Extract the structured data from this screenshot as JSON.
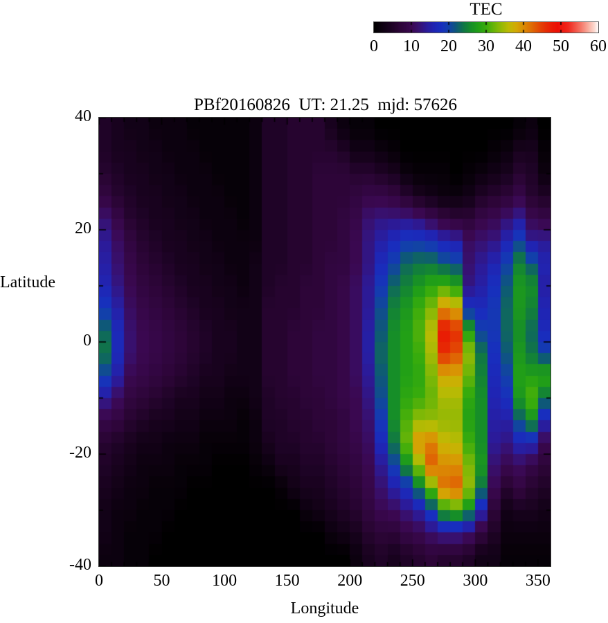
{
  "title": "PBf20160826  UT: 21.25  mjd: 57626",
  "colorbar": {
    "title": "TEC",
    "min": 0,
    "max": 60,
    "ticks": [
      0,
      10,
      20,
      30,
      40,
      50,
      60
    ]
  },
  "axes": {
    "xlabel": "Longitude",
    "ylabel": "Latitude",
    "xlim": [
      0,
      360
    ],
    "ylim": [
      -40,
      40
    ],
    "x_major_ticks": [
      0,
      50,
      100,
      150,
      200,
      250,
      300,
      350
    ],
    "x_minor_step": 10,
    "y_major_ticks": [
      40,
      20,
      0,
      -20,
      -40
    ],
    "y_minor_step": 10
  },
  "chart_data": {
    "type": "heatmap",
    "title": "PBf20160826  UT: 21.25  mjd: 57626",
    "xlabel": "Longitude",
    "ylabel": "Latitude",
    "value_label": "TEC",
    "value_range": [
      0,
      60
    ],
    "grid_on": false,
    "legend_position": "top-right-colorbar",
    "lon_bin_deg": 10,
    "lat_bin_deg": 4,
    "lon_bin_centers": [
      5,
      15,
      25,
      35,
      45,
      55,
      65,
      75,
      85,
      95,
      105,
      115,
      125,
      135,
      145,
      155,
      165,
      175,
      185,
      195,
      205,
      215,
      225,
      235,
      245,
      255,
      265,
      275,
      285,
      295,
      305,
      315,
      325,
      335,
      345,
      355
    ],
    "lat_bin_centers": [
      38,
      34,
      30,
      26,
      22,
      18,
      14,
      10,
      6,
      2,
      -2,
      -6,
      -10,
      -14,
      -18,
      -22,
      -26,
      -30,
      -34,
      -38
    ],
    "tec_values_rows_north_to_south": [
      [
        5,
        4,
        3,
        3,
        2,
        2,
        2,
        1,
        1,
        1,
        1,
        1,
        2,
        5,
        5,
        6,
        6,
        6,
        4,
        2,
        1,
        1,
        0,
        0,
        0,
        0,
        0,
        0,
        0,
        0,
        0,
        0,
        0,
        1,
        2,
        0
      ],
      [
        5,
        4,
        4,
        3,
        3,
        2,
        2,
        2,
        1,
        1,
        1,
        1,
        2,
        5,
        5,
        6,
        6,
        6,
        6,
        5,
        3,
        3,
        2,
        1,
        0,
        0,
        0,
        0,
        0,
        0,
        0,
        1,
        2,
        4,
        4,
        1
      ],
      [
        6,
        5,
        4,
        4,
        3,
        3,
        2,
        2,
        2,
        1,
        1,
        1,
        2,
        5,
        5,
        6,
        6,
        7,
        7,
        7,
        6,
        6,
        5,
        4,
        2,
        1,
        1,
        1,
        0,
        1,
        2,
        3,
        4,
        6,
        5,
        2
      ],
      [
        8,
        6,
        5,
        4,
        4,
        3,
        3,
        2,
        2,
        2,
        1,
        1,
        2,
        5,
        5,
        6,
        6,
        7,
        7,
        7,
        8,
        9,
        9,
        8,
        6,
        4,
        3,
        2,
        2,
        3,
        5,
        6,
        7,
        9,
        6,
        5
      ],
      [
        12,
        9,
        6,
        5,
        4,
        4,
        3,
        3,
        2,
        2,
        2,
        1,
        2,
        5,
        5,
        6,
        6,
        7,
        7,
        8,
        9,
        12,
        13,
        13,
        13,
        12,
        10,
        8,
        7,
        7,
        9,
        10,
        12,
        14,
        10,
        9
      ],
      [
        14,
        11,
        8,
        6,
        5,
        4,
        4,
        3,
        3,
        2,
        2,
        2,
        2,
        5,
        5,
        6,
        6,
        7,
        7,
        8,
        10,
        13,
        15,
        17,
        19,
        19,
        18,
        16,
        15,
        11,
        12,
        13,
        16,
        20,
        14,
        14
      ],
      [
        15,
        12,
        9,
        7,
        6,
        5,
        4,
        4,
        3,
        3,
        2,
        2,
        3,
        5,
        5,
        6,
        6,
        7,
        8,
        8,
        10,
        13,
        17,
        20,
        23,
        24,
        24,
        22,
        21,
        12,
        14,
        16,
        20,
        25,
        22,
        16
      ],
      [
        16,
        13,
        10,
        8,
        7,
        6,
        5,
        4,
        4,
        3,
        3,
        2,
        3,
        5,
        6,
        6,
        7,
        7,
        8,
        9,
        11,
        14,
        19,
        23,
        25,
        27,
        29,
        30,
        28,
        13,
        15,
        18,
        22,
        27,
        26,
        15
      ],
      [
        19,
        15,
        11,
        9,
        8,
        7,
        6,
        5,
        4,
        4,
        3,
        3,
        3,
        6,
        6,
        6,
        7,
        7,
        8,
        9,
        11,
        14,
        21,
        25,
        27,
        30,
        33,
        40,
        38,
        18,
        17,
        19,
        23,
        27,
        25,
        16
      ],
      [
        23,
        17,
        12,
        10,
        9,
        8,
        7,
        6,
        5,
        4,
        4,
        3,
        3,
        6,
        6,
        7,
        7,
        8,
        8,
        9,
        11,
        15,
        22,
        26,
        28,
        31,
        36,
        48,
        46,
        28,
        20,
        19,
        23,
        26,
        23,
        17
      ],
      [
        24,
        17,
        12,
        10,
        9,
        8,
        7,
        6,
        5,
        4,
        4,
        3,
        3,
        6,
        6,
        7,
        7,
        8,
        8,
        9,
        11,
        15,
        23,
        26,
        28,
        30,
        35,
        46,
        44,
        34,
        24,
        18,
        22,
        27,
        24,
        20
      ],
      [
        20,
        15,
        10,
        9,
        8,
        7,
        6,
        5,
        4,
        4,
        3,
        3,
        3,
        6,
        6,
        7,
        7,
        8,
        8,
        9,
        11,
        14,
        22,
        26,
        28,
        29,
        33,
        38,
        38,
        32,
        25,
        17,
        20,
        28,
        28,
        29
      ],
      [
        14,
        11,
        8,
        7,
        6,
        5,
        4,
        4,
        3,
        3,
        2,
        2,
        3,
        5,
        6,
        6,
        7,
        7,
        8,
        9,
        10,
        13,
        21,
        26,
        29,
        30,
        32,
        35,
        35,
        29,
        26,
        16,
        18,
        27,
        31,
        24
      ],
      [
        9,
        8,
        6,
        5,
        4,
        4,
        3,
        3,
        2,
        2,
        2,
        1,
        2,
        5,
        5,
        6,
        6,
        7,
        7,
        8,
        10,
        12,
        19,
        26,
        31,
        34,
        34,
        34,
        34,
        28,
        26,
        15,
        15,
        22,
        26,
        16
      ],
      [
        6,
        5,
        4,
        3,
        3,
        2,
        2,
        2,
        1,
        1,
        1,
        1,
        2,
        4,
        5,
        5,
        6,
        6,
        7,
        8,
        9,
        11,
        17,
        24,
        32,
        40,
        41,
        37,
        36,
        30,
        26,
        14,
        13,
        16,
        16,
        10
      ],
      [
        5,
        4,
        3,
        2,
        2,
        2,
        1,
        1,
        1,
        0,
        0,
        0,
        1,
        2,
        4,
        4,
        5,
        5,
        6,
        7,
        8,
        10,
        14,
        20,
        26,
        34,
        43,
        40,
        40,
        33,
        27,
        12,
        10,
        11,
        9,
        7
      ],
      [
        4,
        3,
        2,
        2,
        1,
        1,
        1,
        0,
        0,
        0,
        0,
        0,
        0,
        0,
        1,
        3,
        4,
        4,
        5,
        6,
        7,
        9,
        12,
        15,
        18,
        24,
        32,
        42,
        43,
        34,
        24,
        10,
        6,
        8,
        6,
        5
      ],
      [
        3,
        2,
        2,
        1,
        1,
        1,
        0,
        0,
        0,
        0,
        0,
        0,
        0,
        0,
        0,
        0,
        2,
        3,
        4,
        5,
        6,
        8,
        10,
        11,
        13,
        15,
        20,
        28,
        30,
        26,
        16,
        7,
        3,
        4,
        4,
        3
      ],
      [
        3,
        2,
        1,
        1,
        1,
        0,
        0,
        0,
        0,
        0,
        0,
        0,
        0,
        0,
        0,
        0,
        0,
        0,
        2,
        3,
        4,
        6,
        7,
        7,
        9,
        10,
        12,
        14,
        14,
        12,
        8,
        5,
        2,
        2,
        2,
        2
      ],
      [
        2,
        2,
        1,
        1,
        0,
        0,
        0,
        0,
        0,
        0,
        0,
        0,
        0,
        0,
        0,
        0,
        0,
        0,
        0,
        0,
        2,
        4,
        5,
        4,
        5,
        6,
        7,
        6,
        6,
        5,
        3,
        3,
        1,
        1,
        1,
        1
      ]
    ],
    "palette_stops": [
      [
        0,
        0,
        0,
        0
      ],
      [
        4,
        24,
        2,
        30
      ],
      [
        7,
        45,
        5,
        56
      ],
      [
        10,
        58,
        8,
        80
      ],
      [
        12,
        56,
        16,
        110
      ],
      [
        14,
        44,
        26,
        150
      ],
      [
        16,
        32,
        36,
        178
      ],
      [
        18,
        24,
        46,
        190
      ],
      [
        20,
        18,
        64,
        170
      ],
      [
        22,
        14,
        88,
        120
      ],
      [
        24,
        16,
        118,
        70
      ],
      [
        26,
        22,
        142,
        40
      ],
      [
        28,
        34,
        160,
        22
      ],
      [
        30,
        58,
        172,
        12
      ],
      [
        33,
        126,
        184,
        6
      ],
      [
        36,
        188,
        186,
        4
      ],
      [
        38,
        210,
        170,
        4
      ],
      [
        40,
        218,
        140,
        4
      ],
      [
        42,
        222,
        110,
        4
      ],
      [
        44,
        226,
        76,
        4
      ],
      [
        46,
        230,
        44,
        4
      ],
      [
        49,
        236,
        14,
        4
      ],
      [
        52,
        240,
        40,
        30
      ],
      [
        55,
        244,
        110,
        95
      ],
      [
        57,
        248,
        165,
        150
      ],
      [
        59,
        252,
        220,
        210
      ],
      [
        60,
        255,
        255,
        255
      ]
    ]
  }
}
